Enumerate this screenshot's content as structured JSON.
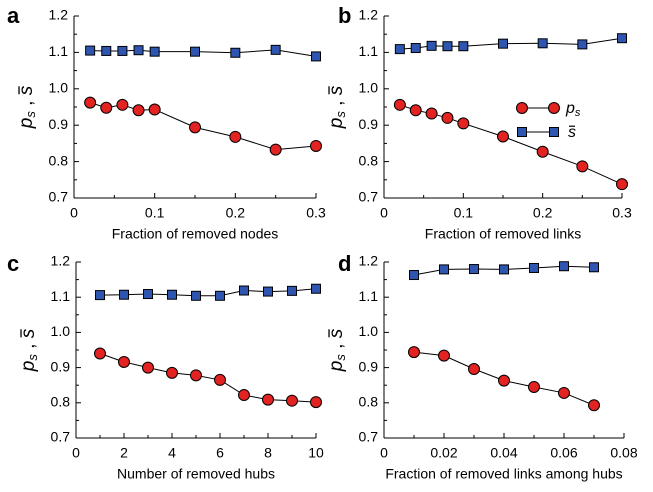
{
  "legend": {
    "series": [
      {
        "name": "p_s",
        "marker": "circle",
        "color": "#e32222"
      },
      {
        "name": "s̄",
        "marker": "square",
        "color": "#2e55b0"
      }
    ]
  },
  "ylabel": {
    "main": "p",
    "sub": "s",
    "sep": " , ",
    "tail": "s"
  },
  "chart_data": [
    {
      "panel": "a",
      "type": "line",
      "xlabel": "Fraction of removed nodes",
      "xlim": [
        0,
        0.3
      ],
      "xticks": [
        "0",
        "0.1",
        "0.2",
        "0.3"
      ],
      "xtick_values": [
        0,
        0.1,
        0.2,
        0.3
      ],
      "ylim": [
        0.7,
        1.2
      ],
      "yticks": [
        "0.7",
        "0.8",
        "0.9",
        "1.0",
        "1.1",
        "1.2"
      ],
      "ytick_values": [
        0.7,
        0.8,
        0.9,
        1.0,
        1.1,
        1.2
      ],
      "x": [
        0.02,
        0.04,
        0.06,
        0.08,
        0.1,
        0.15,
        0.2,
        0.25,
        0.3
      ],
      "series": [
        {
          "name": "p_s",
          "values": [
            0.962,
            0.948,
            0.956,
            0.941,
            0.943,
            0.894,
            0.868,
            0.833,
            0.843
          ]
        },
        {
          "name": "s̄",
          "values": [
            1.105,
            1.104,
            1.104,
            1.106,
            1.102,
            1.102,
            1.099,
            1.107,
            1.089
          ]
        }
      ],
      "legend": false
    },
    {
      "panel": "b",
      "type": "line",
      "xlabel": "Fraction of removed links",
      "xlim": [
        0,
        0.3
      ],
      "xticks": [
        "0",
        "0.1",
        "0.2",
        "0.3"
      ],
      "xtick_values": [
        0,
        0.1,
        0.2,
        0.3
      ],
      "ylim": [
        0.7,
        1.2
      ],
      "yticks": [
        "0.7",
        "0.8",
        "0.9",
        "1.0",
        "1.1",
        "1.2"
      ],
      "ytick_values": [
        0.7,
        0.8,
        0.9,
        1.0,
        1.1,
        1.2
      ],
      "x": [
        0.02,
        0.04,
        0.06,
        0.08,
        0.1,
        0.15,
        0.2,
        0.25,
        0.3
      ],
      "series": [
        {
          "name": "p_s",
          "values": [
            0.956,
            0.941,
            0.932,
            0.92,
            0.905,
            0.869,
            0.827,
            0.787,
            0.738
          ]
        },
        {
          "name": "s̄",
          "values": [
            1.109,
            1.112,
            1.118,
            1.117,
            1.117,
            1.124,
            1.125,
            1.122,
            1.139
          ]
        }
      ],
      "legend": true
    },
    {
      "panel": "c",
      "type": "line",
      "xlabel": "Number of removed hubs",
      "xlim": [
        0,
        10
      ],
      "xticks": [
        "0",
        "2",
        "4",
        "6",
        "8",
        "10"
      ],
      "xtick_values": [
        0,
        2,
        4,
        6,
        8,
        10
      ],
      "ylim": [
        0.7,
        1.2
      ],
      "yticks": [
        "0.7",
        "0.8",
        "0.9",
        "1.0",
        "1.1",
        "1.2"
      ],
      "ytick_values": [
        0.7,
        0.8,
        0.9,
        1.0,
        1.1,
        1.2
      ],
      "x": [
        1,
        2,
        3,
        4,
        5,
        6,
        7,
        8,
        9,
        10
      ],
      "series": [
        {
          "name": "p_s",
          "values": [
            0.94,
            0.916,
            0.9,
            0.885,
            0.878,
            0.865,
            0.822,
            0.809,
            0.806,
            0.802
          ]
        },
        {
          "name": "s̄",
          "values": [
            1.106,
            1.107,
            1.109,
            1.107,
            1.104,
            1.104,
            1.119,
            1.116,
            1.118,
            1.124
          ]
        }
      ],
      "legend": false
    },
    {
      "panel": "d",
      "type": "line",
      "xlabel": "Fraction of removed links among hubs",
      "xlim": [
        0,
        0.08
      ],
      "xticks": [
        "0",
        "0.02",
        "0.04",
        "0.06",
        "0.08"
      ],
      "xtick_values": [
        0,
        0.02,
        0.04,
        0.06,
        0.08
      ],
      "ylim": [
        0.7,
        1.2
      ],
      "yticks": [
        "0.7",
        "0.8",
        "0.9",
        "1.0",
        "1.1",
        "1.2"
      ],
      "ytick_values": [
        0.7,
        0.8,
        0.9,
        1.0,
        1.1,
        1.2
      ],
      "x": [
        0.01,
        0.02,
        0.03,
        0.04,
        0.05,
        0.06,
        0.07
      ],
      "series": [
        {
          "name": "p_s",
          "values": [
            0.944,
            0.934,
            0.896,
            0.863,
            0.845,
            0.828,
            0.793
          ]
        },
        {
          "name": "s̄",
          "values": [
            1.163,
            1.179,
            1.18,
            1.179,
            1.183,
            1.188,
            1.185
          ]
        }
      ],
      "legend": false
    }
  ]
}
